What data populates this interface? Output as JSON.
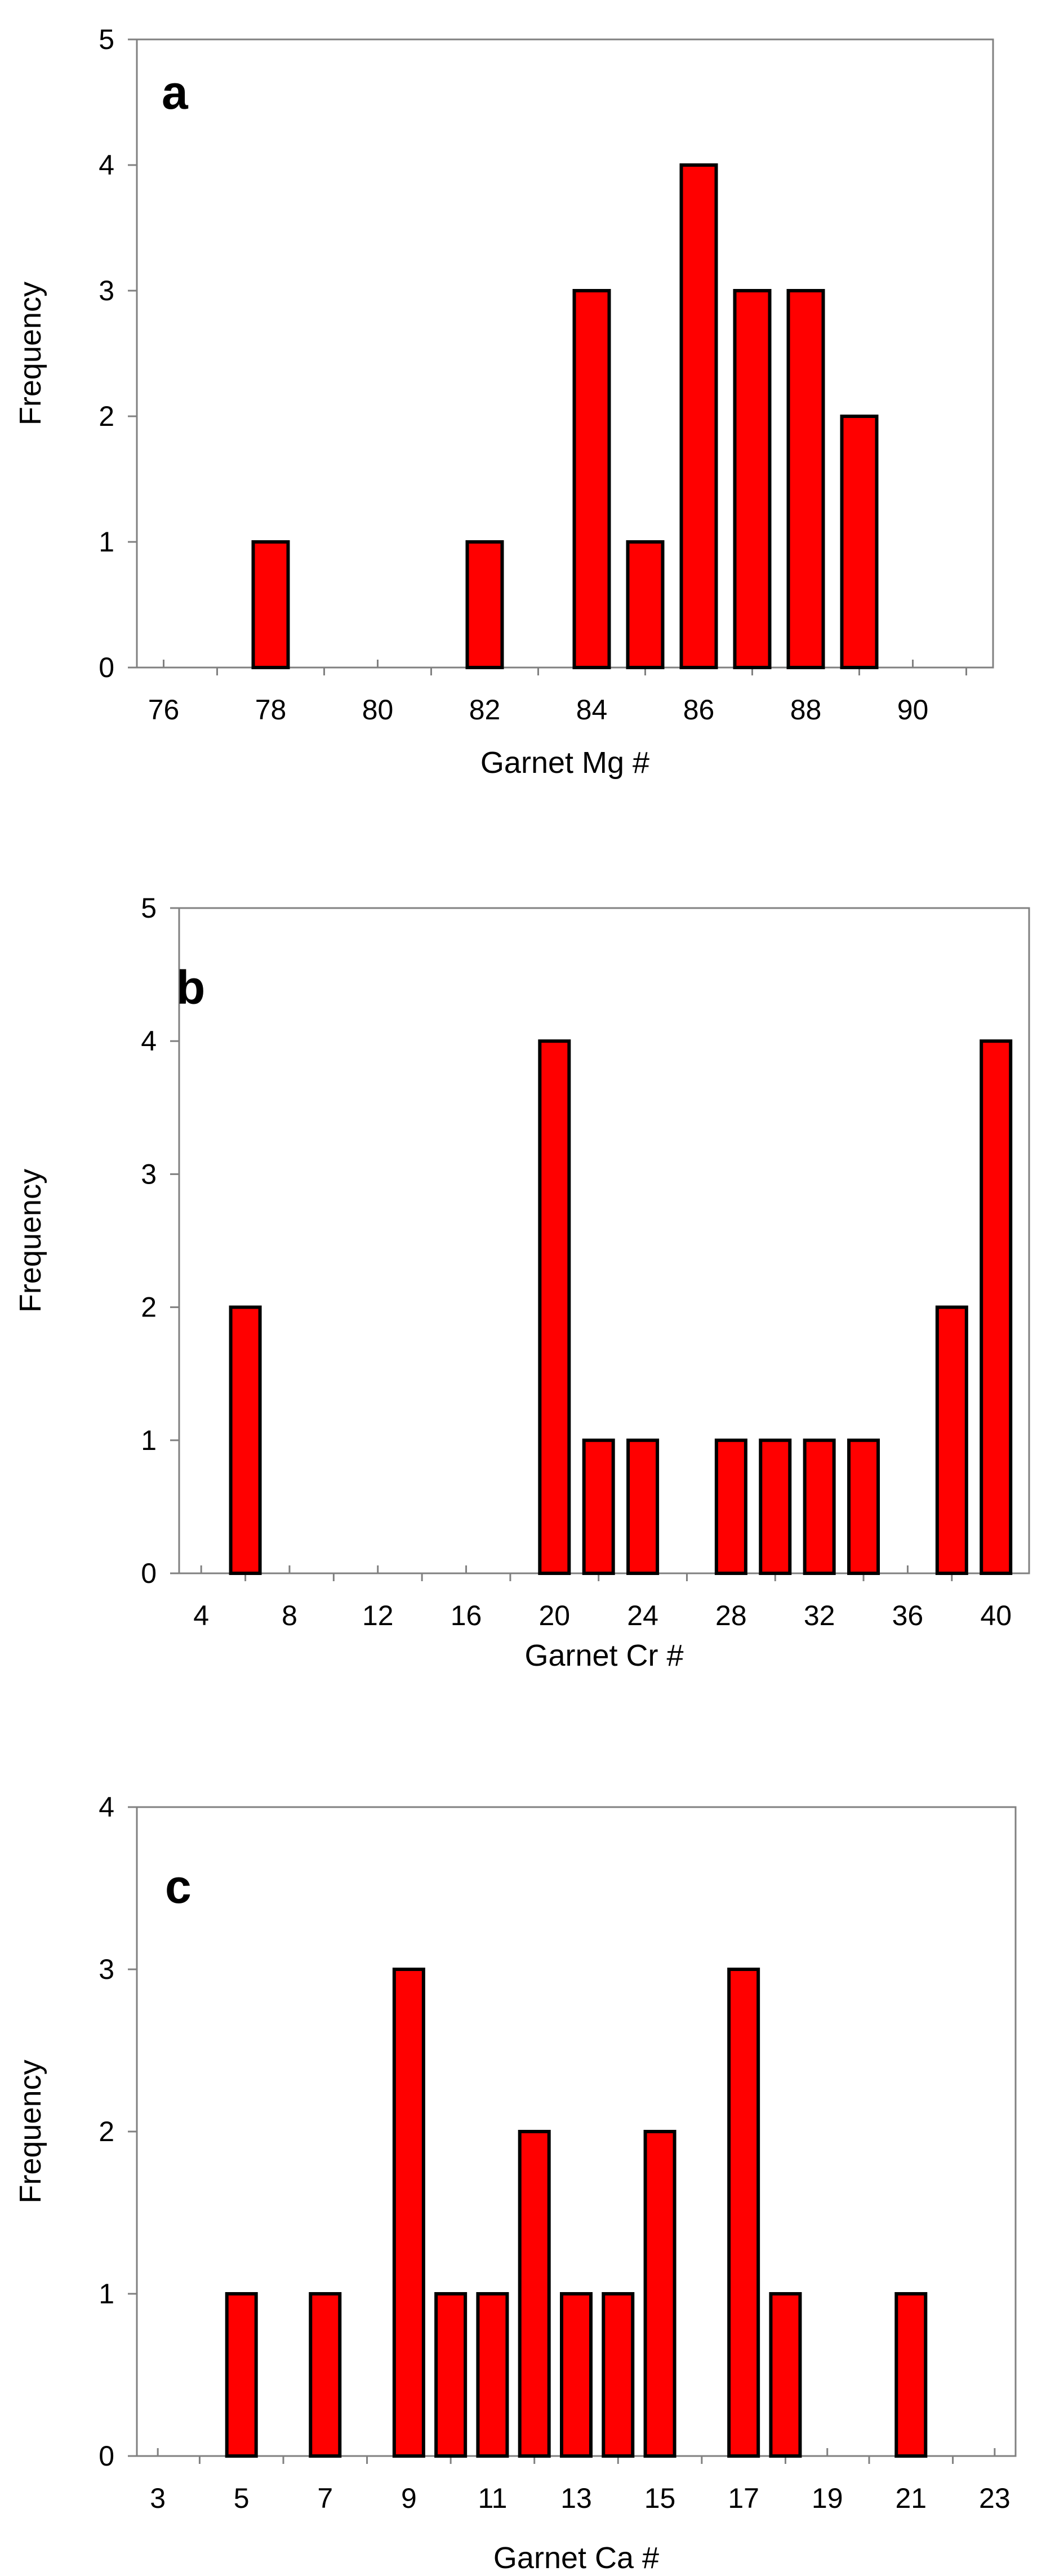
{
  "chart_data": [
    {
      "type": "bar",
      "panel_label": "a",
      "xlabel": "Garnet Mg #",
      "ylabel": "Frequency",
      "xlim": [
        75.5,
        91.5
      ],
      "ylim": [
        0,
        5
      ],
      "xticks": [
        76,
        78,
        80,
        82,
        84,
        86,
        88,
        90
      ],
      "xticks_minor": [
        77,
        79,
        81,
        83,
        85,
        87,
        89,
        91
      ],
      "yticks": [
        0,
        1,
        2,
        3,
        4,
        5
      ],
      "x": [
        78,
        82,
        84,
        85,
        86,
        87,
        88,
        89
      ],
      "values": [
        1,
        1,
        3,
        1,
        4,
        3,
        3,
        2
      ],
      "bar_color": "#ff0000",
      "grid": false
    },
    {
      "type": "bar",
      "panel_label": "b",
      "xlabel": "Garnet Cr #",
      "ylabel": "Frequency",
      "xlim": [
        3,
        41.5
      ],
      "ylim": [
        0,
        5
      ],
      "xticks": [
        4,
        8,
        12,
        16,
        20,
        24,
        28,
        32,
        36,
        40
      ],
      "xticks_minor": [
        6,
        10,
        14,
        18,
        22,
        26,
        30,
        34,
        38
      ],
      "yticks": [
        0,
        1,
        2,
        3,
        4,
        5
      ],
      "x": [
        6,
        20,
        22,
        24,
        28,
        30,
        32,
        34,
        38,
        40
      ],
      "values": [
        2,
        4,
        1,
        1,
        1,
        1,
        1,
        1,
        2,
        4
      ],
      "bar_color": "#ff0000",
      "grid": false
    },
    {
      "type": "bar",
      "panel_label": "c",
      "xlabel": "Garnet Ca #",
      "ylabel": "Frequency",
      "xlim": [
        2.5,
        23.5
      ],
      "ylim": [
        0,
        4
      ],
      "xticks": [
        3,
        5,
        7,
        9,
        11,
        13,
        15,
        17,
        19,
        21,
        23
      ],
      "xticks_minor": [
        4,
        6,
        8,
        10,
        12,
        14,
        16,
        18,
        20,
        22
      ],
      "yticks": [
        0,
        1,
        2,
        3,
        4
      ],
      "x": [
        5,
        7,
        9,
        10,
        11,
        12,
        13,
        14,
        15,
        17,
        18,
        21
      ],
      "values": [
        1,
        1,
        3,
        1,
        1,
        2,
        1,
        1,
        2,
        3,
        1,
        1
      ],
      "bar_color": "#ff0000",
      "grid": false
    }
  ]
}
